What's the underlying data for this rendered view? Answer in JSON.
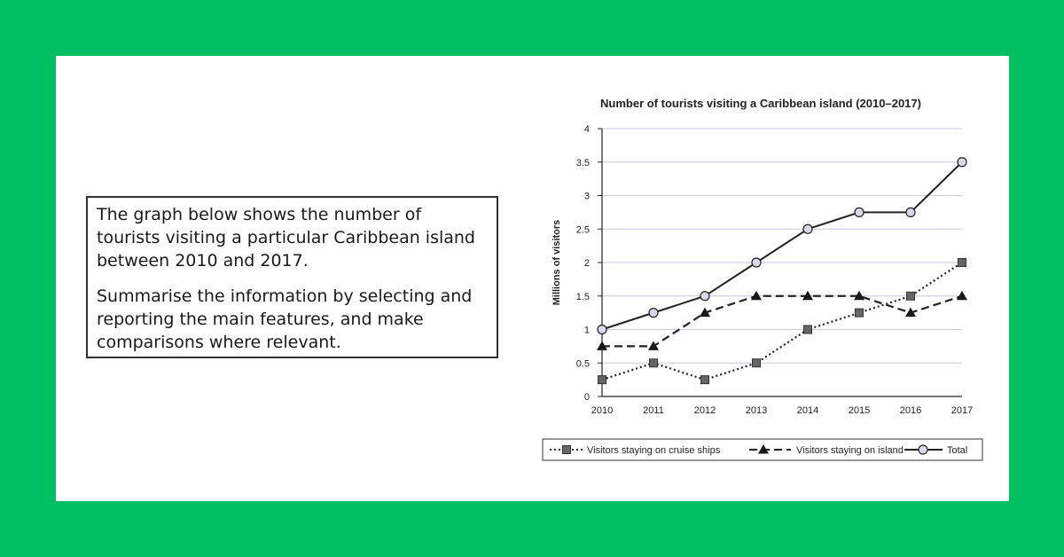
{
  "task": {
    "paragraph1": "The graph below shows the number of tourists visiting a particular Caribbean island between 2010 and 2017.",
    "paragraph2": "Summarise the information by selecting and reporting the main features, and make comparisons where relevant."
  },
  "colors": {
    "background": "#00bf63",
    "card": "#ffffff",
    "gridline": "#c8c8e0",
    "line": "#222222",
    "marker_fill": "#666666",
    "total_marker_fill": "#d8d8ec"
  },
  "chart_data": {
    "type": "line",
    "title": "Number of tourists visiting a Caribbean island (2010–2017)",
    "xlabel": "",
    "ylabel": "Millions of visitors",
    "ylim": [
      0,
      4
    ],
    "yticks": [
      "0",
      "0.5",
      "1",
      "1.5",
      "2",
      "2.5",
      "3",
      "3.5",
      "4"
    ],
    "categories": [
      "2010",
      "2011",
      "2012",
      "2013",
      "2014",
      "2015",
      "2016",
      "2017"
    ],
    "grid": "horizontal",
    "legend": "bottom",
    "series": [
      {
        "name": "Visitors staying on cruise ships",
        "marker": "square",
        "line_style": "dotted",
        "values": [
          0.25,
          0.5,
          0.25,
          0.5,
          1.0,
          1.25,
          1.5,
          2.0
        ]
      },
      {
        "name": "Visitors staying on island",
        "marker": "triangle",
        "line_style": "dashed",
        "values": [
          0.75,
          0.75,
          1.25,
          1.5,
          1.5,
          1.5,
          1.25,
          1.5
        ]
      },
      {
        "name": "Total",
        "marker": "circle",
        "line_style": "solid",
        "values": [
          1.0,
          1.25,
          1.5,
          2.0,
          2.5,
          2.75,
          2.75,
          3.5
        ]
      }
    ]
  }
}
